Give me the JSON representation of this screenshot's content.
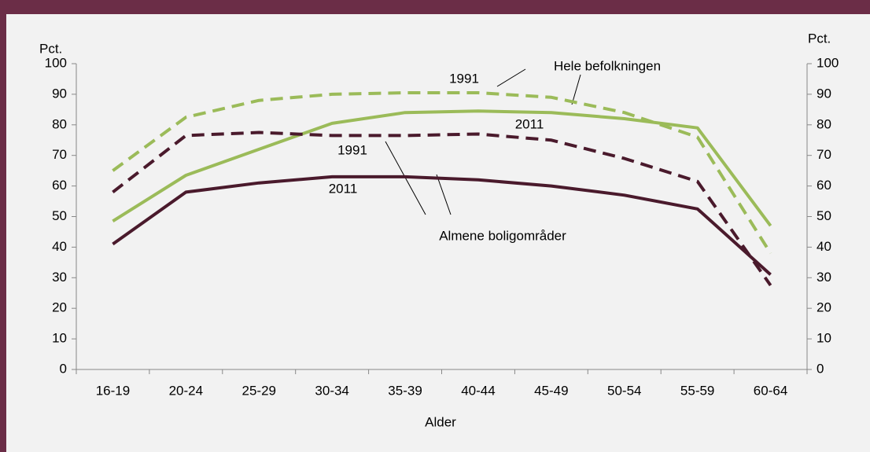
{
  "chart_data": {
    "type": "line",
    "categories": [
      "16-19",
      "20-24",
      "25-29",
      "30-34",
      "35-39",
      "40-44",
      "45-49",
      "50-54",
      "55-59",
      "60-64"
    ],
    "series": [
      {
        "color": "#9bbb59",
        "dashed": true,
        "values": [
          65,
          82.5,
          88,
          90,
          90.5,
          90.5,
          89,
          84,
          76,
          38
        ]
      },
      {
        "color": "#9bbb59",
        "dashed": false,
        "values": [
          48.5,
          63.5,
          72,
          80.5,
          84,
          84.5,
          84,
          82,
          79,
          47
        ]
      },
      {
        "color": "#4a1a2c",
        "dashed": true,
        "values": [
          58,
          76.5,
          77.5,
          76.5,
          76.5,
          77,
          75,
          69,
          61.5,
          27.5
        ]
      },
      {
        "color": "#4a1a2c",
        "dashed": false,
        "values": [
          41,
          58,
          61,
          63,
          63,
          62,
          60,
          57,
          52.5,
          31
        ]
      }
    ],
    "ylabel": "Pct.",
    "y2label": "Pct.",
    "xlabel": "Alder",
    "ylim": [
      0,
      100
    ],
    "yticks": [
      0,
      10,
      20,
      30,
      40,
      50,
      60,
      70,
      80,
      90,
      100
    ],
    "y2lim": [
      0,
      100
    ],
    "y2ticks": [
      0,
      10,
      20,
      30,
      40,
      50,
      60,
      70,
      80,
      90,
      100
    ],
    "annotations": [
      "1991",
      "Hele befolkningen",
      "2011",
      "1991",
      "2011",
      "Almene boligområder"
    ]
  }
}
